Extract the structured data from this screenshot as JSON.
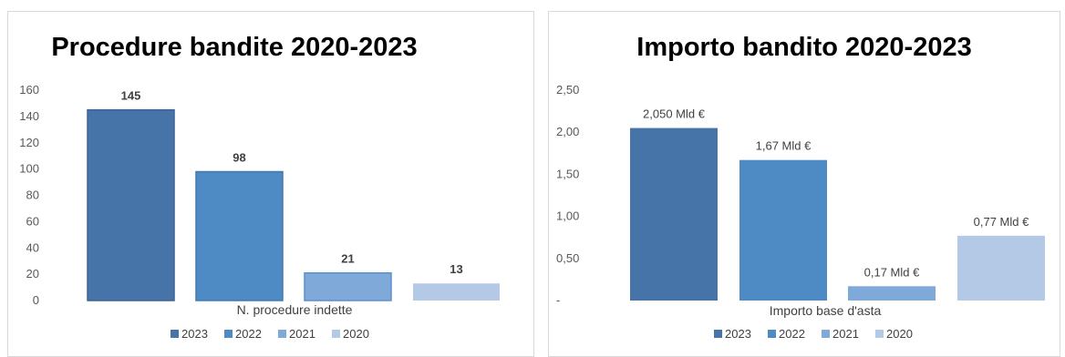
{
  "chart_data": [
    {
      "type": "bar",
      "title": "Procedure bandite 2020-2023",
      "xlabel": "N. procedure indette",
      "ylabel": "",
      "ylim": [
        0,
        160
      ],
      "yticks": [
        "0",
        "20",
        "40",
        "60",
        "80",
        "100",
        "120",
        "140",
        "160"
      ],
      "categories": [
        "2023",
        "2022",
        "2021",
        "2020"
      ],
      "values": [
        145,
        98,
        21,
        13
      ],
      "data_labels": [
        "145",
        "98",
        "21",
        "13"
      ],
      "colors": [
        "#4674a9",
        "#4e8ac4",
        "#7fa9d9",
        "#b4c9e6"
      ],
      "legend": [
        "2023",
        "2022",
        "2021",
        "2020"
      ],
      "legend_position": "bottom",
      "grid": false
    },
    {
      "type": "bar",
      "title": "Importo bandito 2020-2023",
      "xlabel": "Importo base d'asta",
      "ylabel": "",
      "ylim": [
        0,
        2.5
      ],
      "yticks": [
        "-",
        "0,50",
        "1,00",
        "1,50",
        "2,00",
        "2,50"
      ],
      "categories": [
        "2023",
        "2022",
        "2021",
        "2020"
      ],
      "values": [
        2.05,
        1.67,
        0.17,
        0.77
      ],
      "data_labels": [
        "2,050 Mld €",
        "1,67 Mld €",
        "0,17 Mld €",
        "0,77 Mld €"
      ],
      "colors": [
        "#4674a9",
        "#4e8ac4",
        "#7fa9d9",
        "#b4c9e6"
      ],
      "legend": [
        "2023",
        "2022",
        "2021",
        "2020"
      ],
      "legend_position": "bottom",
      "grid": false
    }
  ]
}
